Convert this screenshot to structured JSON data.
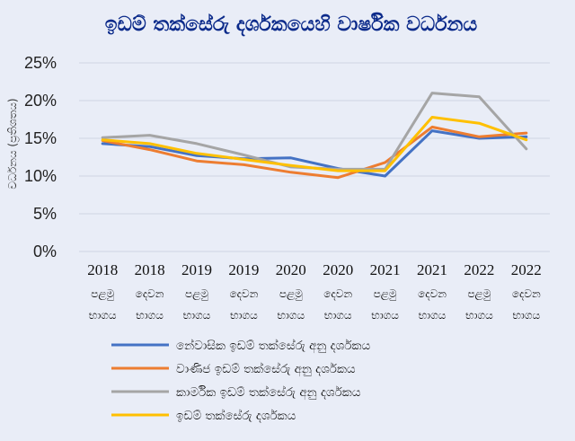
{
  "chart_data": {
    "type": "line",
    "title": "ඉඩම් තක්සේරු දර්ශකයෙහි වාර්ෂික වර්ධනය",
    "ylabel": "වර්ධනය (ප්‍රතිශතය)",
    "xlabel": "",
    "ylim": [
      0,
      25
    ],
    "yticks": [
      "0%",
      "5%",
      "10%",
      "15%",
      "20%",
      "25%"
    ],
    "ytick_values": [
      0,
      5,
      10,
      15,
      20,
      25
    ],
    "categories": [
      {
        "year": "2018",
        "half": "පළමු",
        "part": "භාගය"
      },
      {
        "year": "2018",
        "half": "දෙවන",
        "part": "භාගය"
      },
      {
        "year": "2019",
        "half": "පළමු",
        "part": "භාගය"
      },
      {
        "year": "2019",
        "half": "දෙවන",
        "part": "භාගය"
      },
      {
        "year": "2020",
        "half": "පළමු",
        "part": "භාගය"
      },
      {
        "year": "2020",
        "half": "දෙවන",
        "part": "භාගය"
      },
      {
        "year": "2021",
        "half": "පළමු",
        "part": "භාගය"
      },
      {
        "year": "2021",
        "half": "දෙවන",
        "part": "භාගය"
      },
      {
        "year": "2022",
        "half": "පළමු",
        "part": "භාගය"
      },
      {
        "year": "2022",
        "half": "දෙවන",
        "part": "භාගය"
      }
    ],
    "grid": true,
    "legend_position": "bottom",
    "series": [
      {
        "name": "නේවාසික ඉඩම් තක්සේරු අනු දර්ශකය",
        "color": "#4472c4",
        "values": [
          14.3,
          13.9,
          12.7,
          12.3,
          12.4,
          11.0,
          10.0,
          16.0,
          15.0,
          15.2
        ]
      },
      {
        "name": "වාණිජ ඉඩම් තක්සේරු අනු දර්ශකය",
        "color": "#ed7d31",
        "values": [
          14.7,
          13.5,
          12.0,
          11.5,
          10.5,
          9.8,
          11.8,
          16.5,
          15.2,
          15.7
        ]
      },
      {
        "name": "කාර්මික ඉඩම් තක්සේරු අනු දර්ශකය",
        "color": "#a5a5a5",
        "values": [
          15.1,
          15.4,
          14.3,
          12.8,
          11.2,
          10.9,
          10.9,
          21.0,
          20.5,
          13.6
        ]
      },
      {
        "name": "ඉඩම් තක්සේරු දර්ශකය",
        "color": "#ffc000",
        "values": [
          14.8,
          14.3,
          13.0,
          12.2,
          11.4,
          10.7,
          10.7,
          17.8,
          17.0,
          14.8
        ]
      }
    ]
  }
}
